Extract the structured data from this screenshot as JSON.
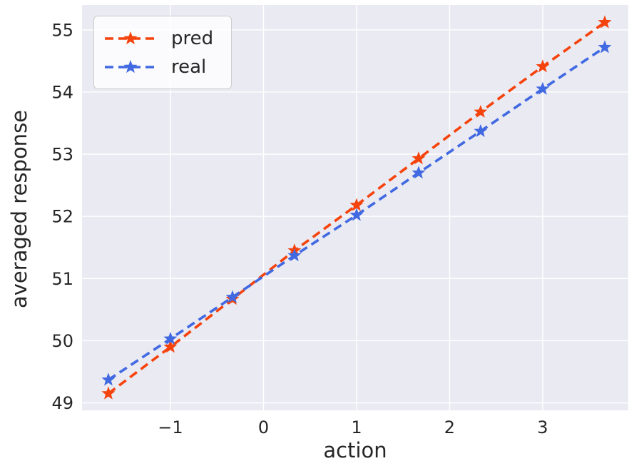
{
  "chart_data": {
    "type": "line",
    "title": "",
    "xlabel": "action",
    "ylabel": "averaged response",
    "x": [
      -1.667,
      -1.0,
      -0.333,
      0.333,
      1.0,
      1.667,
      2.333,
      3.0,
      3.667
    ],
    "series": [
      {
        "name": "pred",
        "color": "#F5430D",
        "marker": "star",
        "linestyle": "dashed",
        "values": [
          49.15,
          49.9,
          50.67,
          51.45,
          52.18,
          52.93,
          53.68,
          54.41,
          55.12
        ]
      },
      {
        "name": "real",
        "color": "#4169E1",
        "marker": "star",
        "linestyle": "dashed",
        "values": [
          49.37,
          50.03,
          50.7,
          51.37,
          52.02,
          52.7,
          53.37,
          54.05,
          54.72
        ]
      }
    ],
    "xticks": [
      -1,
      0,
      1,
      2,
      3
    ],
    "xtick_labels": [
      "−1",
      "0",
      "1",
      "2",
      "3"
    ],
    "yticks": [
      49,
      50,
      51,
      52,
      53,
      54,
      55
    ],
    "ytick_labels": [
      "49",
      "50",
      "51",
      "52",
      "53",
      "54",
      "55"
    ],
    "xlim": [
      -1.95,
      3.92
    ],
    "ylim": [
      48.88,
      55.4
    ],
    "grid": true,
    "legend_position": "upper-left",
    "colors": {
      "plot_background": "#EAEAF2",
      "grid": "#FFFFFF",
      "text": "#262626",
      "legend_background": "#FFFFFF",
      "legend_border": "#CCCCCC"
    }
  }
}
